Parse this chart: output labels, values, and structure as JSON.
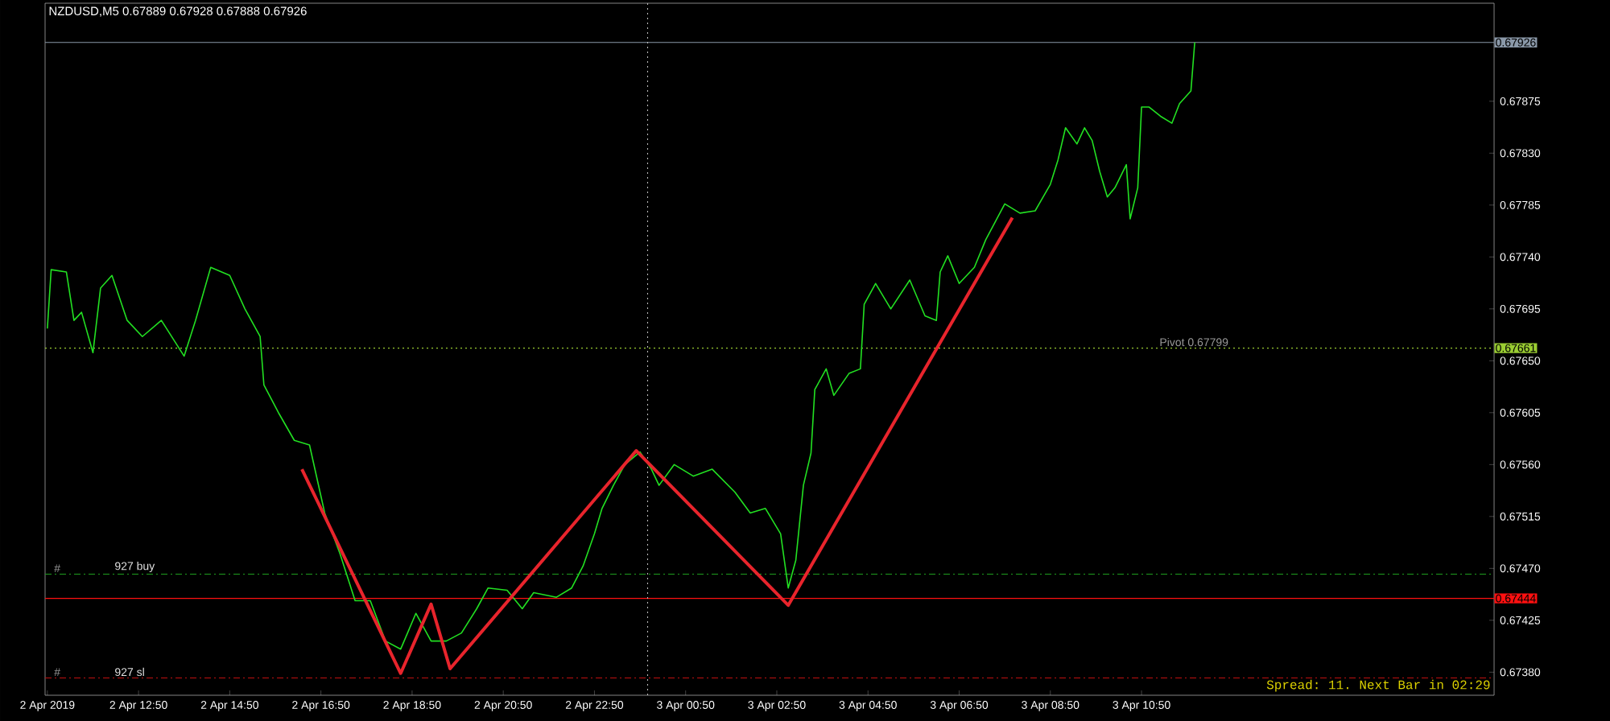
{
  "chart_data": {
    "type": "line",
    "title": "NZDUSD,M5  0.67889 0.67928 0.67888 0.67926",
    "xlim": [
      "2019-04-02T10:47",
      "2019-04-03T18:34"
    ],
    "ylim": [
      0.6736,
      0.6796
    ],
    "xticks": [
      {
        "value": "2019-04-02T10:50",
        "label": "2 Apr 2019"
      },
      {
        "value": "2019-04-02T12:50",
        "label": "2 Apr 12:50"
      },
      {
        "value": "2019-04-02T14:50",
        "label": "2 Apr 14:50"
      },
      {
        "value": "2019-04-02T16:50",
        "label": "2 Apr 16:50"
      },
      {
        "value": "2019-04-02T18:50",
        "label": "2 Apr 18:50"
      },
      {
        "value": "2019-04-02T20:50",
        "label": "2 Apr 20:50"
      },
      {
        "value": "2019-04-02T22:50",
        "label": "2 Apr 22:50"
      },
      {
        "value": "2019-04-03T00:50",
        "label": "3 Apr 00:50"
      },
      {
        "value": "2019-04-03T02:50",
        "label": "3 Apr 02:50"
      },
      {
        "value": "2019-04-03T04:50",
        "label": "3 Apr 04:50"
      },
      {
        "value": "2019-04-03T06:50",
        "label": "3 Apr 06:50"
      },
      {
        "value": "2019-04-03T08:50",
        "label": "3 Apr 08:50"
      },
      {
        "value": "2019-04-03T10:50",
        "label": "3 Apr 10:50"
      }
    ],
    "yticks": [
      {
        "value": 0.6738,
        "label": "0.67380"
      },
      {
        "value": 0.67425,
        "label": "0.67425"
      },
      {
        "value": 0.6747,
        "label": "0.67470"
      },
      {
        "value": 0.67515,
        "label": "0.67515"
      },
      {
        "value": 0.6756,
        "label": "0.67560"
      },
      {
        "value": 0.67605,
        "label": "0.67605"
      },
      {
        "value": 0.6765,
        "label": "0.67650"
      },
      {
        "value": 0.67695,
        "label": "0.67695"
      },
      {
        "value": 0.6774,
        "label": "0.67740"
      },
      {
        "value": 0.67785,
        "label": "0.67785"
      },
      {
        "value": 0.6783,
        "label": "0.67830"
      },
      {
        "value": 0.67875,
        "label": "0.67875"
      }
    ],
    "grid": false,
    "marker": "none",
    "line_style": "solid",
    "series": [
      {
        "color": "#22e022",
        "x": [
          "2019-04-02T10:50",
          "2019-04-02T10:55",
          "2019-04-02T11:15",
          "2019-04-02T11:25",
          "2019-04-02T11:35",
          "2019-04-02T11:50",
          "2019-04-02T12:00",
          "2019-04-02T12:15",
          "2019-04-02T12:35",
          "2019-04-02T12:55",
          "2019-04-02T13:20",
          "2019-04-02T13:50",
          "2019-04-02T14:05",
          "2019-04-02T14:25",
          "2019-04-02T14:50",
          "2019-04-02T15:10",
          "2019-04-02T15:30",
          "2019-04-02T15:35",
          "2019-04-02T15:55",
          "2019-04-02T16:15",
          "2019-04-02T16:35",
          "2019-04-02T16:55",
          "2019-04-02T17:15",
          "2019-04-02T17:35",
          "2019-04-02T17:55",
          "2019-04-02T18:15",
          "2019-04-02T18:35",
          "2019-04-02T18:55",
          "2019-04-02T19:15",
          "2019-04-02T19:35",
          "2019-04-02T19:55",
          "2019-04-02T20:15",
          "2019-04-02T20:30",
          "2019-04-02T20:55",
          "2019-04-02T21:15",
          "2019-04-02T21:30",
          "2019-04-02T22:00",
          "2019-04-02T22:20",
          "2019-04-02T22:35",
          "2019-04-02T22:50",
          "2019-04-02T23:00",
          "2019-04-02T23:15",
          "2019-04-02T23:30",
          "2019-04-02T23:50",
          "2019-04-03T00:05",
          "2019-04-03T00:15",
          "2019-04-03T00:35",
          "2019-04-03T01:00",
          "2019-04-03T01:25",
          "2019-04-03T01:55",
          "2019-04-03T02:15",
          "2019-04-03T02:35",
          "2019-04-03T02:55",
          "2019-04-03T03:05",
          "2019-04-03T03:15",
          "2019-04-03T03:25",
          "2019-04-03T03:35",
          "2019-04-03T03:40",
          "2019-04-03T03:55",
          "2019-04-03T04:05",
          "2019-04-03T04:25",
          "2019-04-03T04:40",
          "2019-04-03T04:45",
          "2019-04-03T05:00",
          "2019-04-03T05:20",
          "2019-04-03T05:45",
          "2019-04-03T06:05",
          "2019-04-03T06:20",
          "2019-04-03T06:25",
          "2019-04-03T06:35",
          "2019-04-03T06:50",
          "2019-04-03T07:10",
          "2019-04-03T07:25",
          "2019-04-03T07:50",
          "2019-04-03T08:10",
          "2019-04-03T08:30",
          "2019-04-03T08:50",
          "2019-04-03T09:00",
          "2019-04-03T09:10",
          "2019-04-03T09:25",
          "2019-04-03T09:35",
          "2019-04-03T09:45",
          "2019-04-03T09:55",
          "2019-04-03T10:05",
          "2019-04-03T10:15",
          "2019-04-03T10:30",
          "2019-04-03T10:35",
          "2019-04-03T10:45",
          "2019-04-03T10:50",
          "2019-04-03T11:00",
          "2019-04-03T11:15",
          "2019-04-03T11:30",
          "2019-04-03T11:40",
          "2019-04-03T11:55",
          "2019-04-03T12:00"
        ],
        "values": [
          0.67678,
          0.67729,
          0.67727,
          0.67685,
          0.67692,
          0.67657,
          0.67713,
          0.67724,
          0.67685,
          0.67671,
          0.67685,
          0.67654,
          0.67685,
          0.67731,
          0.67724,
          0.67695,
          0.67671,
          0.67629,
          0.67604,
          0.67581,
          0.67577,
          0.67518,
          0.67483,
          0.67442,
          0.67442,
          0.67407,
          0.674,
          0.67431,
          0.67407,
          0.67407,
          0.67414,
          0.67435,
          0.67453,
          0.67451,
          0.67435,
          0.67449,
          0.67445,
          0.67453,
          0.67472,
          0.675,
          0.67522,
          0.67542,
          0.6756,
          0.67571,
          0.67556,
          0.67542,
          0.6756,
          0.6755,
          0.67556,
          0.67536,
          0.67518,
          0.67522,
          0.675,
          0.67453,
          0.67477,
          0.67542,
          0.6757,
          0.67625,
          0.67643,
          0.6762,
          0.67639,
          0.67643,
          0.67699,
          0.67717,
          0.67695,
          0.6772,
          0.67689,
          0.67685,
          0.67727,
          0.67741,
          0.67717,
          0.67731,
          0.67755,
          0.67786,
          0.67778,
          0.6778,
          0.67803,
          0.67824,
          0.67852,
          0.67838,
          0.67852,
          0.67841,
          0.67814,
          0.67792,
          0.678,
          0.6782,
          0.67773,
          0.678,
          0.6787,
          0.6787,
          0.67862,
          0.67856,
          0.67873,
          0.67884,
          0.67926
        ]
      },
      {
        "color": "#e8242c",
        "x": [
          "2019-04-02T16:25",
          "2019-04-02T18:35",
          "2019-04-02T19:15",
          "2019-04-02T19:40",
          "2019-04-02T23:45",
          "2019-04-03T03:05",
          "2019-04-03T08:00"
        ],
        "values": [
          0.67556,
          0.67379,
          0.67439,
          0.67383,
          0.67572,
          0.67438,
          0.67774
        ]
      }
    ],
    "ref_lines": [
      {
        "axis": "y",
        "value": 0.67926,
        "label": "0.67926",
        "color": "#8a98a8",
        "line_style": "solid"
      },
      {
        "axis": "y",
        "value": 0.67661,
        "label": "0.67661",
        "color": "#9acd32",
        "line_style": "dotted"
      },
      {
        "axis": "y",
        "value": 0.67444,
        "label": "0.67444",
        "color": "#ff1010",
        "line_style": "solid"
      },
      {
        "axis": "y",
        "value": 0.67465,
        "label": "927 buy",
        "color": "#1e9e1e",
        "line_style": "dashdot"
      },
      {
        "axis": "y",
        "value": 0.67375,
        "label": "927 sl",
        "color": "#c01010",
        "line_style": "dashdot"
      },
      {
        "axis": "x",
        "value": "2019-04-03T00:00",
        "color": "#c0c0c0",
        "line_style": "dotted"
      }
    ],
    "annotations": [
      "Spread: 11. Next Bar in 02:29",
      {
        "text": "Pivot 0.67799",
        "x": "2019-04-03T11:59",
        "y": 0.67661
      },
      {
        "text": "#",
        "x": "2019-04-02T11:03",
        "y": 0.67465
      },
      {
        "text": "#",
        "x": "2019-04-02T11:03",
        "y": 0.67375
      }
    ]
  }
}
